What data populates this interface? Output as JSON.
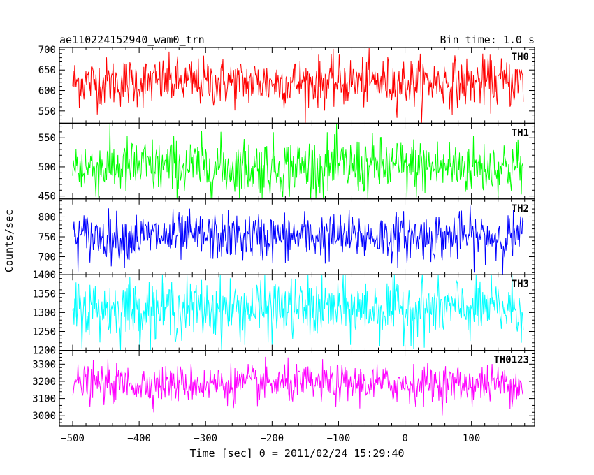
{
  "header": {
    "left_title": "ae110224152940_wam0_trn",
    "right_title": "Bin time: 1.0 s"
  },
  "chart_data": {
    "type": "line",
    "title": "ae110224152940_wam0_trn",
    "subtitle": "Bin time: 1.0 s",
    "xlabel": "Time [sec] 0 = 2011/02/24 15:29:40",
    "ylabel": "Counts/sec",
    "xlim": [
      -520,
      195
    ],
    "x_range_data": [
      -500,
      178
    ],
    "x_ticks": [
      -500,
      -400,
      -300,
      -200,
      -100,
      0,
      100
    ],
    "x_tick_labels": [
      "−500",
      "−400",
      "−300",
      "−200",
      "−100",
      "0",
      "100"
    ],
    "bin_time_sec": 1.0,
    "grid": false,
    "legend": "none",
    "panels": [
      {
        "name": "TH0",
        "color": "#ff0000",
        "ylim": [
          520,
          705
        ],
        "ticks": [
          550,
          600,
          650,
          700
        ],
        "tick_labels": [
          "550",
          "600",
          "650",
          "700"
        ],
        "mean": 620,
        "std": 30
      },
      {
        "name": "TH1",
        "color": "#00ff00",
        "ylim": [
          445,
          575
        ],
        "ticks": [
          450,
          500,
          550
        ],
        "tick_labels": [
          "450",
          "500",
          "550"
        ],
        "mean": 500,
        "std": 25
      },
      {
        "name": "TH2",
        "color": "#0000ff",
        "ylim": [
          655,
          845
        ],
        "ticks": [
          700,
          750,
          800
        ],
        "tick_labels": [
          "700",
          "750",
          "800"
        ],
        "mean": 750,
        "std": 30
      },
      {
        "name": "TH3",
        "color": "#00ffff",
        "ylim": [
          1200,
          1400
        ],
        "ticks": [
          1200,
          1250,
          1300,
          1350,
          1400
        ],
        "tick_labels": [
          "1200",
          "1250",
          "1300",
          "1350",
          "1400"
        ],
        "mean": 1310,
        "std": 40
      },
      {
        "name": "TH0123",
        "color": "#ff00ff",
        "ylim": [
          2940,
          3380
        ],
        "ticks": [
          3000,
          3100,
          3200,
          3300
        ],
        "tick_labels": [
          "3000",
          "3100",
          "3200",
          "3300"
        ],
        "mean": 3185,
        "std": 55
      }
    ]
  }
}
